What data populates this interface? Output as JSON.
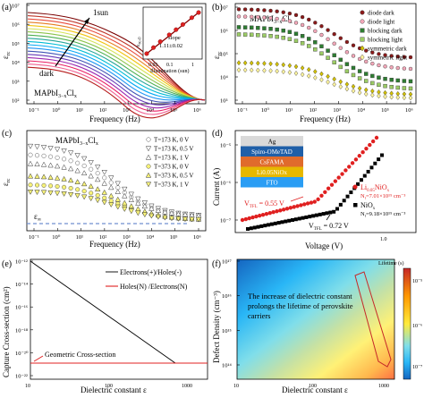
{
  "panel_a": {
    "letter": "(a)",
    "xlabel": "Frequency (Hz)",
    "ylabel": "ε",
    "ylabel_sub": "rc",
    "x_ticks": [
      "10⁻¹",
      "10⁰",
      "10¹",
      "10²",
      "10³",
      "10⁴",
      "10⁵",
      "10⁶"
    ],
    "y_ticks": [
      "10²",
      "10³",
      "10⁴",
      "10⁵",
      "10⁶",
      "10⁷"
    ],
    "annot_sun": "1sun",
    "annot_dark": "dark",
    "material": "MAPbI",
    "material_sub": "3−x",
    "material_tail": "Cl",
    "material_tail_sub": "x",
    "inset_ylabel": "ε",
    "inset_ylabel_sub": "rc-0",
    "inset_xlabel": "Illumination (sun)",
    "inset_x_ticks": [
      "0.01",
      "0.1",
      "1"
    ],
    "inset_slope_label": "slope",
    "inset_slope_value": "1.11±0.02",
    "curve_colors": [
      "#7a0000",
      "#c0392b",
      "#e74c3c",
      "#e67e22",
      "#f1c40f",
      "#d4e157",
      "#8bc34a",
      "#4caf50",
      "#26a69a",
      "#00bcd4",
      "#03a9f4",
      "#2196f3",
      "#3f51b5",
      "#673ab7",
      "#9c27b0",
      "#e91e63",
      "#f06292",
      "#b71c1c"
    ],
    "inset_points": [
      {
        "x": 0.005,
        "y": 0.004
      },
      {
        "x": 0.01,
        "y": 0.009
      },
      {
        "x": 0.02,
        "y": 0.02
      },
      {
        "x": 0.05,
        "y": 0.05
      },
      {
        "x": 0.1,
        "y": 0.1
      },
      {
        "x": 0.2,
        "y": 0.2
      },
      {
        "x": 0.5,
        "y": 0.5
      },
      {
        "x": 1,
        "y": 1
      }
    ]
  },
  "panel_b": {
    "letter": "(b)",
    "xlabel": "Frequency (Hz)",
    "ylabel": "ε",
    "ylabel_sub": "rc",
    "x_ticks": [
      "10⁻¹",
      "10⁰",
      "10¹",
      "10²",
      "10³",
      "10⁴",
      "10⁵",
      "10⁶"
    ],
    "y_ticks": [
      "10³",
      "10⁴",
      "10⁵",
      "10⁶",
      "10⁷"
    ],
    "material": "MAPbI",
    "material_sub": "3−x",
    "material_tail": "Cl",
    "material_tail_sub": "x",
    "legend": [
      {
        "label": "diode dark",
        "color": "#8b1a1a",
        "shape": "circle"
      },
      {
        "label": "diode light",
        "color": "#f2a7b8",
        "shape": "circle"
      },
      {
        "label": "blocking dark",
        "color": "#2e7d32",
        "shape": "square"
      },
      {
        "label": "blocking light",
        "color": "#9ccc65",
        "shape": "square"
      },
      {
        "label": "symmetric dark",
        "color": "#d4c200",
        "shape": "diamond"
      },
      {
        "label": "symmetric light",
        "color": "#fff59d",
        "shape": "diamond"
      }
    ]
  },
  "panel_c": {
    "letter": "(c)",
    "xlabel": "Frequency (Hz)",
    "ylabel": "ε",
    "ylabel_sub": "rc",
    "x_ticks": [
      "10⁻¹",
      "10⁰",
      "10¹",
      "10²",
      "10³",
      "10⁴",
      "10⁵",
      "10⁶"
    ],
    "material": "MAPbI",
    "material_sub": "3−x",
    "material_tail": "Cl",
    "material_tail_sub": "x",
    "eps_inf": "ε",
    "eps_inf_sub": "∞",
    "legend": [
      {
        "label": "T=173 K, 0 V",
        "color": "#ffffff",
        "shape": "circle"
      },
      {
        "label": "T=173 K, 0.5 V",
        "color": "#ffffff",
        "shape": "tri-down"
      },
      {
        "label": "T=173 K, 1 V",
        "color": "#ffffff",
        "shape": "tri-up"
      },
      {
        "label": "T=373 K, 0 V",
        "color": "#f7f27a",
        "shape": "circle"
      },
      {
        "label": "T=373 K, 0.5 V",
        "color": "#f7f27a",
        "shape": "tri-up"
      },
      {
        "label": "T=373 K, 1 V",
        "color": "#f7f27a",
        "shape": "tri-down"
      }
    ]
  },
  "panel_d": {
    "letter": "(d)",
    "xlabel": "Voltage (V)",
    "ylabel": "Current (A)",
    "x_ticks": [
      "1.0"
    ],
    "y_ticks": [
      "10⁻⁷",
      "10⁻⁶",
      "10⁻⁵"
    ],
    "stack": [
      {
        "label": "Ag",
        "color": "#d9d9d9",
        "text_color": "#000000"
      },
      {
        "label": "Spiro-OMeTAD",
        "color": "#1f5fa8",
        "text_color": "#ffffff"
      },
      {
        "label": "CsFAMA",
        "color": "#e06b2c",
        "text_color": "#ffffff"
      },
      {
        "label": "Li0.05NiOx",
        "color": "#e6b800",
        "text_color": "#ffffff"
      },
      {
        "label": "FTO",
        "color": "#2a9df4",
        "text_color": "#ffffff"
      }
    ],
    "legend_red": "Li",
    "legend_red_sub": "0.05",
    "legend_red_tail": "NiO",
    "legend_red_tail_sub": "x",
    "red_density": "N",
    "red_density_sub": "t",
    "red_density_val": "=7.01×10¹⁵ cm⁻³",
    "legend_black": "NiO",
    "legend_black_sub": "x",
    "black_density": "N",
    "black_density_sub": "t",
    "black_density_val": "=9.18×10¹⁵ cm⁻³",
    "vtfl_red": "V",
    "vtfl_red_sub": "TFL",
    "vtfl_red_val": " = 0.55 V",
    "vtfl_black": "V",
    "vtfl_black_sub": "TFL",
    "vtfl_black_val": " = 0.72 V"
  },
  "panel_e": {
    "letter": "(e)",
    "xlabel": "Dielectric constant ε",
    "ylabel": "Capture Cross-section (cm²)",
    "x_ticks": [
      "10",
      "100",
      "1000"
    ],
    "y_ticks": [
      "10⁻¹²",
      "10⁻¹⁴",
      "10⁻¹⁶",
      "10⁻¹⁸",
      "10⁻²⁰",
      "10⁻²²"
    ],
    "legend_black": "Electrons(+)/Holes(-)",
    "legend_red": "Holes(N) /Electrons(N)",
    "geometric_label": "Geometric Cross-section"
  },
  "panel_f": {
    "letter": "(f)",
    "xlabel": "Dielectric constant ε",
    "ylabel": "Defect Density (cm⁻³)",
    "x_ticks": [
      "10",
      "100",
      "1000"
    ],
    "y_ticks": [
      "10¹⁷",
      "10¹⁶",
      "10¹⁵",
      "10¹⁴"
    ],
    "colorbar_title": "Lifetime (s)",
    "colorbar_ticks": [
      "10⁻⁵",
      "10⁻⁶",
      "10⁻⁷"
    ],
    "annotation": "The increase of dielectric constant prolongs the lifetime of perovskite carriers"
  }
}
